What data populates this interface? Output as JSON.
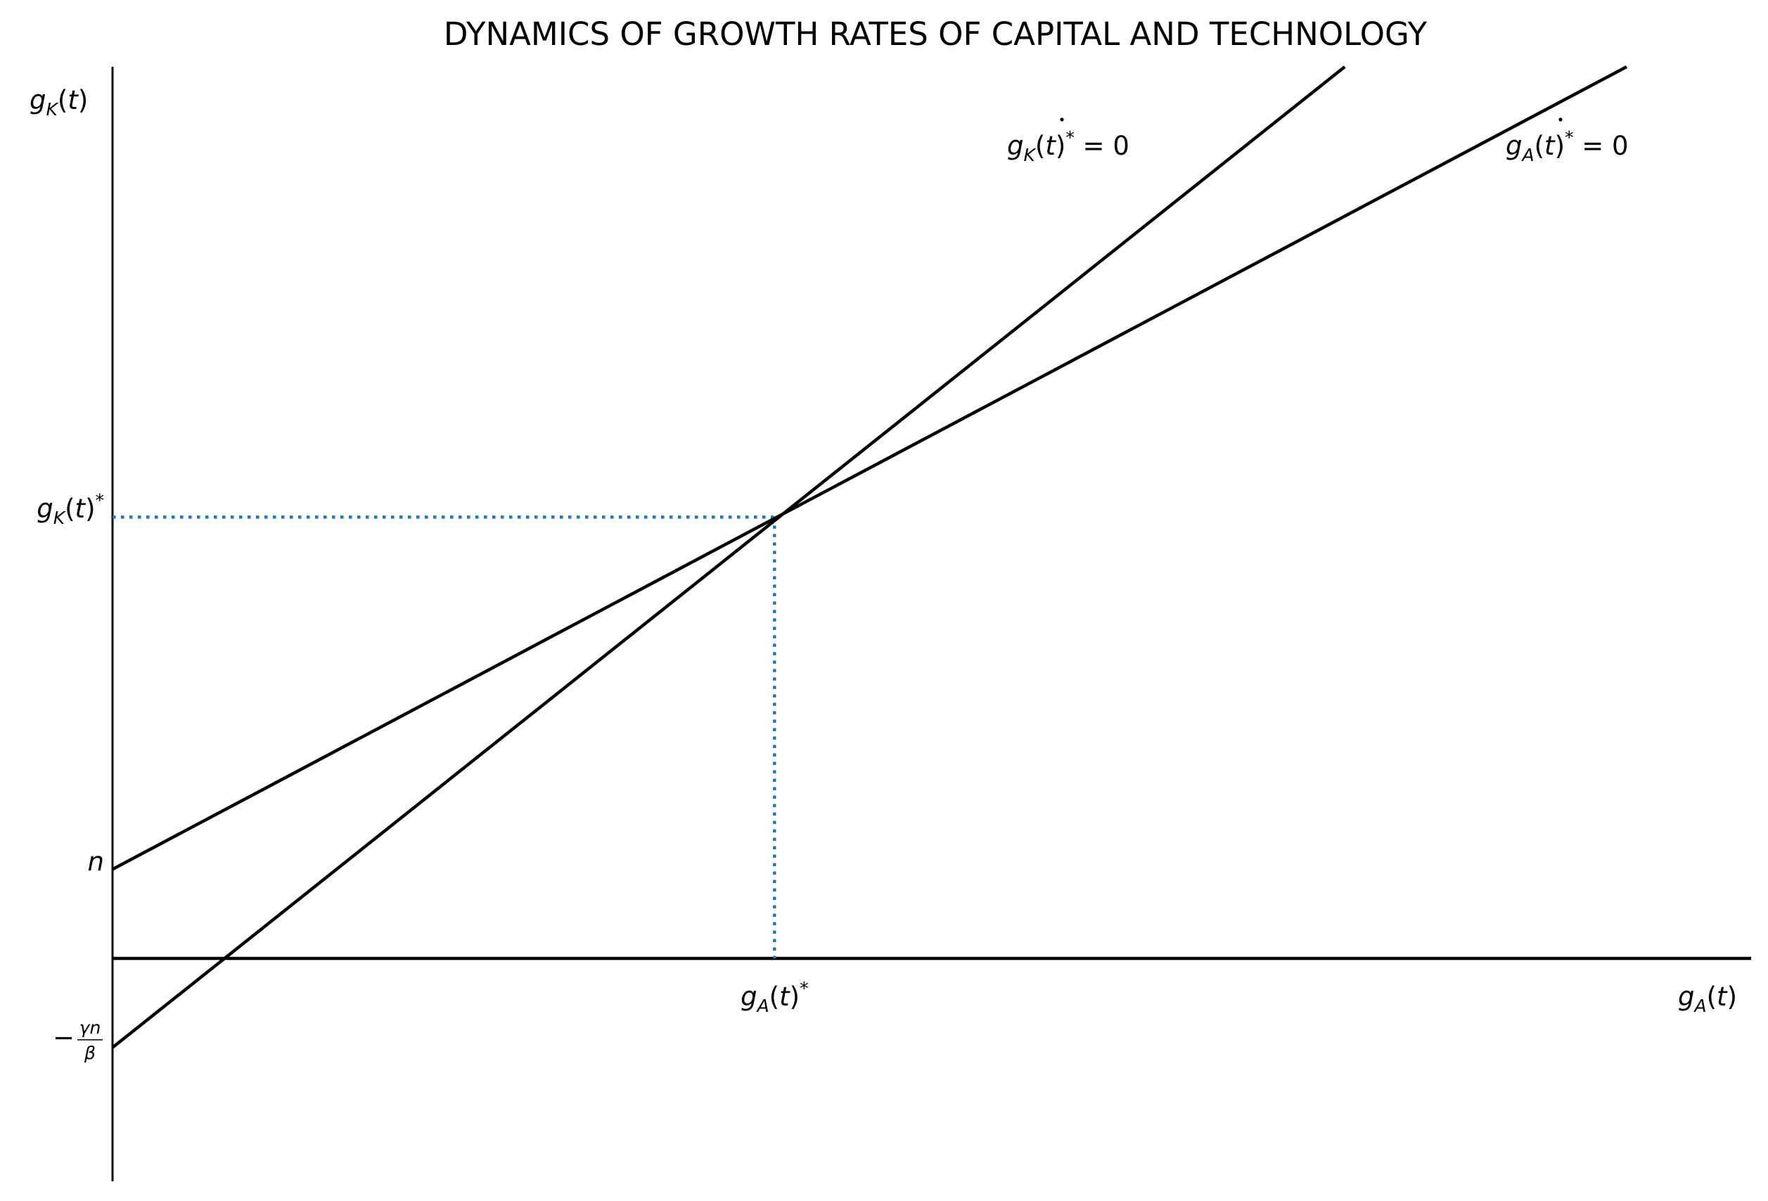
{
  "chart_data": {
    "type": "line",
    "title": "DYNAMICS OF GROWTH RATES OF CAPITAL AND TECHNOLOGY",
    "xlabel": "",
    "ylabel": "",
    "x_axis_end_label": {
      "base": "g",
      "sub": "A",
      "rest": "(t)"
    },
    "y_axis_end_label": {
      "base": "g",
      "sub": "K",
      "rest": "(t)"
    },
    "xlim": [
      0,
      10
    ],
    "ylim": [
      -2.5,
      10
    ],
    "series": [
      {
        "label": {
          "base": "g",
          "sub": "K",
          "rest": "(t)",
          "sup": "*",
          "eq": " = 0"
        },
        "x": [
          0,
          7.52
        ],
        "y": [
          -1.0,
          10.0
        ],
        "color": "#000000"
      },
      {
        "label": {
          "base": "g",
          "sub": "A",
          "rest": "(t)",
          "sup": "*",
          "eq": " = 0"
        },
        "x": [
          0,
          9.24
        ],
        "y": [
          1.0,
          10.0
        ],
        "color": "#000000"
      }
    ],
    "equilibrium": {
      "x": 4.04,
      "y": 4.95,
      "color": "#1f77b4",
      "x_tick_label": {
        "base": "g",
        "sub": "A",
        "rest": "(t)",
        "sup": "*"
      },
      "y_tick_label": {
        "base": "g",
        "sub": "K",
        "rest": "(t)",
        "sup": "*"
      }
    },
    "y_ticks": [
      {
        "value": 1.0,
        "label": "n"
      },
      {
        "value": -1.0,
        "label": {
          "minus": "−",
          "num": "γn",
          "den": "β"
        }
      }
    ],
    "grid": false,
    "legend": "none"
  }
}
